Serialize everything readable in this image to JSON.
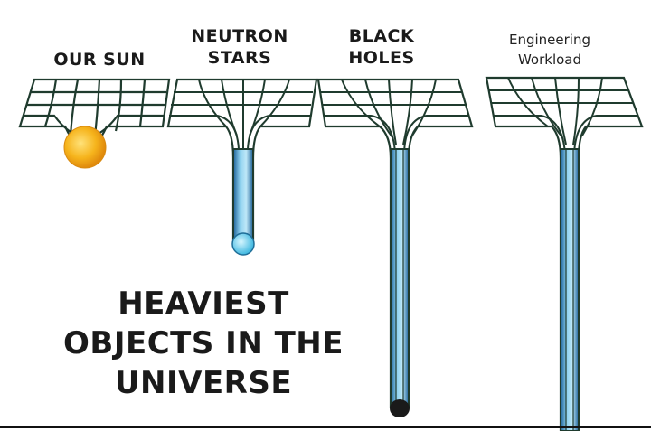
{
  "labels": {
    "sun": "OUR SUN",
    "neutron": "NEUTRON\nSTARS",
    "black": "BLACK\nHOLES",
    "engineering": "Engineering\nWorkload"
  },
  "headline": {
    "line1": "HEAVIEST",
    "line2": "OBJECTS IN THE",
    "line3": "UNIVERSE"
  },
  "colors": {
    "grid": "#1f3b2e",
    "tube": "#1e6fae",
    "tube_light": "#a8dcf2",
    "sun": "#f6b41c",
    "neutron_star": "#5fd0f0"
  }
}
